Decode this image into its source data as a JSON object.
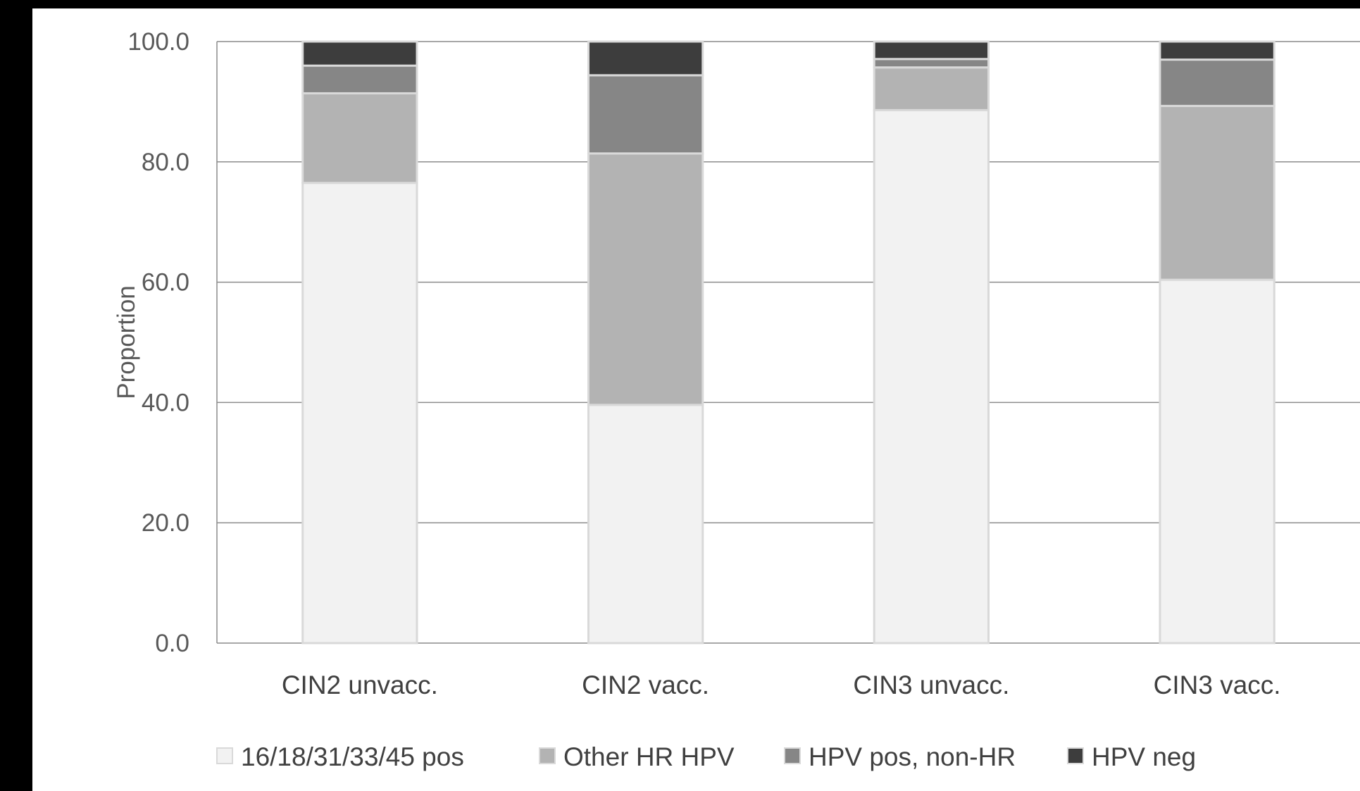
{
  "chart_data": {
    "type": "bar",
    "stacked": true,
    "ylabel": "Proportion",
    "xlabel": "",
    "ylim": [
      0,
      100
    ],
    "yticks": [
      "0.0",
      "20.0",
      "40.0",
      "60.0",
      "80.0",
      "100.0"
    ],
    "grid": true,
    "legend_position": "bottom",
    "categories": [
      "CIN2 unvacc.",
      "CIN2 vacc.",
      "CIN3 unvacc.",
      "CIN3 vacc."
    ],
    "series": [
      {
        "name": "16/18/31/33/45 pos",
        "color": "#f2f2f2",
        "values": [
          76.5,
          39.6,
          88.6,
          60.4
        ]
      },
      {
        "name": "Other HR HPV",
        "color": "#b3b3b3",
        "values": [
          14.9,
          41.8,
          7.1,
          28.9
        ]
      },
      {
        "name": "HPV pos, non-HR",
        "color": "#868686",
        "values": [
          4.6,
          13.0,
          1.4,
          7.7
        ]
      },
      {
        "name": "HPV neg",
        "color": "#3d3d3d",
        "values": [
          4.0,
          5.6,
          2.9,
          3.0
        ]
      }
    ]
  }
}
